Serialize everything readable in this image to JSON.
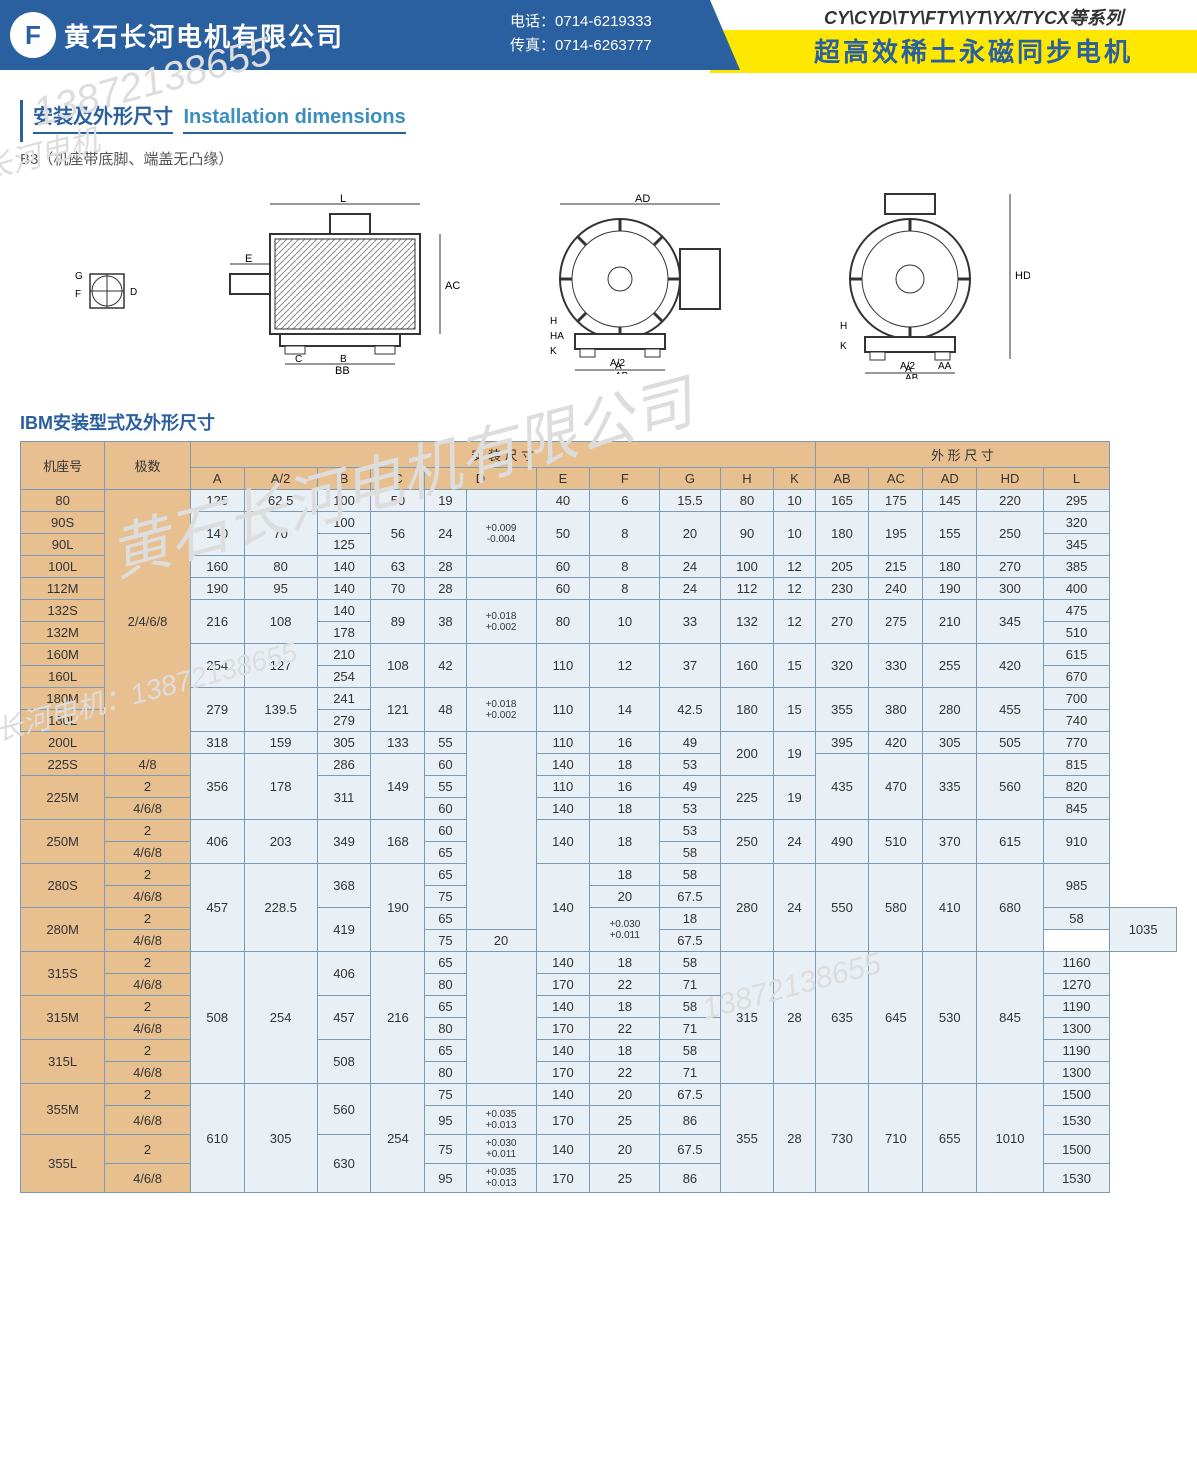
{
  "header": {
    "logo_text": "F",
    "company": "黄石长河电机有限公司",
    "tel_label": "电话：",
    "tel": "0714-6219333",
    "fax_label": "传真：",
    "fax": "0714-6263777",
    "series": "CY\\CYD\\TY\\FTY\\YT\\YX/TYCX等系列",
    "product": "超高效稀土永磁同步电机"
  },
  "section": {
    "title_cn": "安装及外形尺寸",
    "title_en": "Installation dimensions",
    "b3_note": "B3（机座带底脚、端盖无凸缘）",
    "table_title": "IBM安装型式及外形尺寸"
  },
  "watermarks": [
    "长河电机",
    "13872138655",
    "黄石长河电机有限公司",
    "长河电机：13872138655"
  ],
  "spec_table": {
    "group1": "安 装 尺 寸",
    "group2": "外 形 尺 寸",
    "col_frame": "机座号",
    "col_pole": "极数",
    "cols": [
      "A",
      "A/2",
      "B",
      "C",
      "D",
      "",
      "E",
      "F",
      "G",
      "H",
      "K",
      "AB",
      "AC",
      "AD",
      "HD",
      "L"
    ],
    "pole_std": "2/4/6/8",
    "rows": [
      {
        "f": "80",
        "A": "125",
        "A2": "62.5",
        "B": "100",
        "C": "50",
        "D": "19",
        "Dt": "",
        "E": "40",
        "F": "6",
        "G": "15.5",
        "H": "80",
        "K": "10",
        "AB": "165",
        "AC": "175",
        "AD": "145",
        "HD": "220",
        "L": "295"
      },
      {
        "f": "90S",
        "A": "140",
        "A2": "70",
        "B": "100",
        "C": "56",
        "D": "24",
        "Dt": "+0.009\n-0.004",
        "E": "50",
        "F": "8",
        "G": "20",
        "H": "90",
        "K": "10",
        "AB": "180",
        "AC": "195",
        "AD": "155",
        "HD": "250",
        "L": "320"
      },
      {
        "f": "90L",
        "B": "125",
        "L": "345"
      },
      {
        "f": "100L",
        "A": "160",
        "A2": "80",
        "B": "140",
        "C": "63",
        "D": "28",
        "E": "60",
        "F": "8",
        "G": "24",
        "H": "100",
        "K": "12",
        "AB": "205",
        "AC": "215",
        "AD": "180",
        "HD": "270",
        "L": "385"
      },
      {
        "f": "112M",
        "A": "190",
        "A2": "95",
        "B": "140",
        "C": "70",
        "D": "28",
        "E": "60",
        "F": "8",
        "G": "24",
        "H": "112",
        "K": "12",
        "AB": "230",
        "AC": "240",
        "AD": "190",
        "HD": "300",
        "L": "400"
      },
      {
        "f": "132S",
        "A": "216",
        "A2": "108",
        "B": "140",
        "C": "89",
        "D": "38",
        "Dt": "+0.018\n+0.002",
        "E": "80",
        "F": "10",
        "G": "33",
        "H": "132",
        "K": "12",
        "AB": "270",
        "AC": "275",
        "AD": "210",
        "HD": "345",
        "L": "475"
      },
      {
        "f": "132M",
        "B": "178",
        "L": "510"
      },
      {
        "f": "160M",
        "A": "254",
        "A2": "127",
        "B": "210",
        "C": "108",
        "D": "42",
        "E": "110",
        "F": "12",
        "G": "37",
        "H": "160",
        "K": "15",
        "AB": "320",
        "AC": "330",
        "AD": "255",
        "HD": "420",
        "L": "615"
      },
      {
        "f": "160L",
        "B": "254",
        "L": "670"
      },
      {
        "f": "180M",
        "A": "279",
        "A2": "139.5",
        "B": "241",
        "C": "121",
        "D": "48",
        "Dt": "+0.018\n+0.002",
        "E": "110",
        "F": "14",
        "G": "42.5",
        "H": "180",
        "K": "15",
        "AB": "355",
        "AC": "380",
        "AD": "280",
        "HD": "455",
        "L": "700"
      },
      {
        "f": "180L",
        "B": "279",
        "L": "740"
      },
      {
        "f": "200L",
        "A": "318",
        "A2": "159",
        "B": "305",
        "C": "133",
        "D": "55",
        "E": "110",
        "F": "16",
        "G": "49",
        "H": "200",
        "K": "19",
        "AB": "395",
        "AC": "420",
        "AD": "305",
        "HD": "505",
        "L": "770"
      },
      {
        "f": "225S",
        "p": "4/8",
        "A": "356",
        "A2": "178",
        "B": "286",
        "C": "149",
        "D": "60",
        "E": "140",
        "F": "18",
        "G": "53",
        "H": "225",
        "K": "19",
        "AB": "435",
        "AC": "470",
        "AD": "335",
        "HD": "560",
        "L": "815"
      },
      {
        "f": "225M",
        "p": "2",
        "B": "311",
        "D": "55",
        "E": "110",
        "F": "16",
        "G": "49",
        "L": "820"
      },
      {
        "f": "",
        "p": "4/6/8",
        "D": "60",
        "E": "140",
        "F": "18",
        "G": "53",
        "L": "845"
      },
      {
        "f": "250M",
        "p": "2",
        "A": "406",
        "A2": "203",
        "B": "349",
        "C": "168",
        "D": "60",
        "E": "140",
        "F": "18",
        "G": "53",
        "H": "250",
        "K": "24",
        "AB": "490",
        "AC": "510",
        "AD": "370",
        "HD": "615",
        "L": "910"
      },
      {
        "f": "",
        "p": "4/6/8",
        "D": "65",
        "G": "58"
      },
      {
        "f": "280S",
        "p": "2",
        "A": "457",
        "A2": "228.5",
        "B": "368",
        "C": "190",
        "D": "65",
        "Dt": "+0.030\n+0.011",
        "E": "140",
        "F": "18",
        "G": "58",
        "H": "280",
        "K": "24",
        "AB": "550",
        "AC": "580",
        "AD": "410",
        "HD": "680",
        "L": "985"
      },
      {
        "f": "",
        "p": "4/6/8",
        "D": "75",
        "F": "20",
        "G": "67.5"
      },
      {
        "f": "280M",
        "p": "2",
        "B": "419",
        "D": "65",
        "F": "18",
        "G": "58",
        "L": "1035"
      },
      {
        "f": "",
        "p": "4/6/8",
        "D": "75",
        "F": "20",
        "G": "67.5"
      },
      {
        "f": "315S",
        "p": "2",
        "A": "508",
        "A2": "254",
        "B": "406",
        "C": "216",
        "D": "65",
        "E": "140",
        "F": "18",
        "G": "58",
        "H": "315",
        "K": "28",
        "AB": "635",
        "AC": "645",
        "AD": "530",
        "HD": "845",
        "L": "1160"
      },
      {
        "f": "",
        "p": "4/6/8",
        "D": "80",
        "E": "170",
        "F": "22",
        "G": "71",
        "L": "1270"
      },
      {
        "f": "315M",
        "p": "2",
        "B": "457",
        "D": "65",
        "E": "140",
        "F": "18",
        "G": "58",
        "L": "1190"
      },
      {
        "f": "",
        "p": "4/6/8",
        "D": "80",
        "E": "170",
        "F": "22",
        "G": "71",
        "L": "1300"
      },
      {
        "f": "315L",
        "p": "2",
        "B": "508",
        "D": "65",
        "E": "140",
        "F": "18",
        "G": "58",
        "L": "1190"
      },
      {
        "f": "",
        "p": "4/6/8",
        "D": "80",
        "E": "170",
        "F": "22",
        "G": "71",
        "L": "1300"
      },
      {
        "f": "355M",
        "p": "2",
        "A": "610",
        "A2": "305",
        "B": "560",
        "C": "254",
        "D": "75",
        "E": "140",
        "F": "20",
        "G": "67.5",
        "H": "355",
        "K": "28",
        "AB": "730",
        "AC": "710",
        "AD": "655",
        "HD": "1010",
        "L": "1500"
      },
      {
        "f": "",
        "p": "4/6/8",
        "D": "95",
        "Dt": "+0.035\n+0.013",
        "E": "170",
        "F": "25",
        "G": "86",
        "L": "1530"
      },
      {
        "f": "355L",
        "p": "2",
        "B": "630",
        "D": "75",
        "Dt": "+0.030\n+0.011",
        "E": "140",
        "F": "20",
        "G": "67.5",
        "L": "1500"
      },
      {
        "f": "",
        "p": "4/6/8",
        "D": "95",
        "Dt": "+0.035\n+0.013",
        "E": "170",
        "F": "25",
        "G": "86",
        "L": "1530"
      }
    ]
  }
}
